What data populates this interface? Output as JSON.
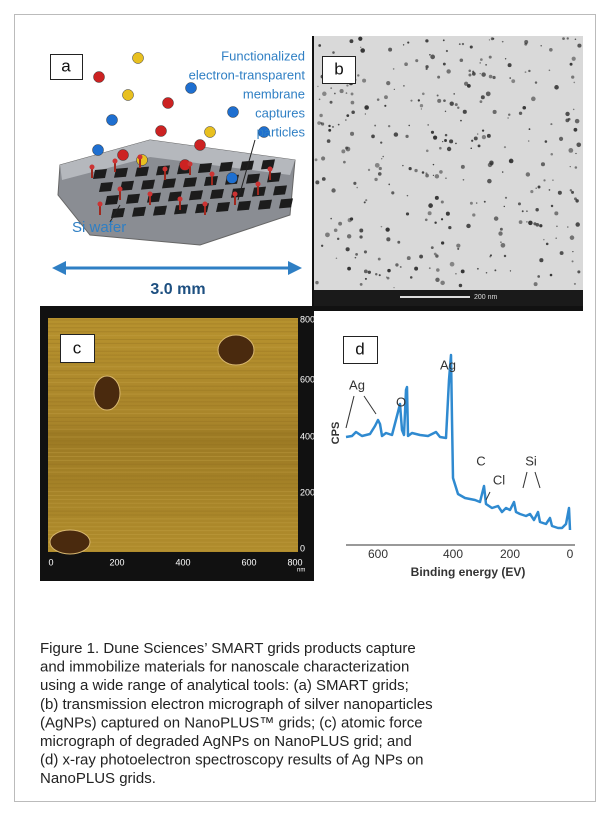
{
  "panel_a": {
    "label": "a",
    "callout_lines": [
      "Functionalized",
      "electron-transparent",
      "membrane",
      "captures",
      "particles"
    ],
    "substrate_label": "Si wafer",
    "scale_label": "3.0 mm"
  },
  "panel_b": {
    "label": "b",
    "scale_label": "200 nm"
  },
  "panel_c": {
    "label": "c",
    "x_ticks": [
      0,
      200,
      400,
      600,
      800
    ],
    "y_ticks": [
      800,
      600,
      400,
      200,
      0
    ],
    "unit": "nm"
  },
  "panel_d": {
    "label": "d",
    "y_label": "CPS",
    "x_label": "Binding energy (EV)",
    "x_ticks": [
      600,
      400,
      200,
      0
    ],
    "peak_labels": [
      "Ag",
      "O",
      "Ag",
      "C",
      "Cl",
      "Si"
    ]
  },
  "caption": {
    "lines": [
      "Figure 1. Dune Sciences’ SMART grids products capture",
      "and immobilize materials for nanoscale characterization",
      "using a wide range of analytical tools: (a) SMART grids;",
      "(b) transmission electron micrograph of silver nanoparticles",
      "(AgNPs) captured on NanoPLUS™ grids; (c) atomic force",
      "micrograph of degraded AgNPs on NanoPLUS grid; and",
      "(d) x-ray photoelectron spectroscopy results of Ag NPs on",
      "NanoPLUS grids."
    ]
  }
}
